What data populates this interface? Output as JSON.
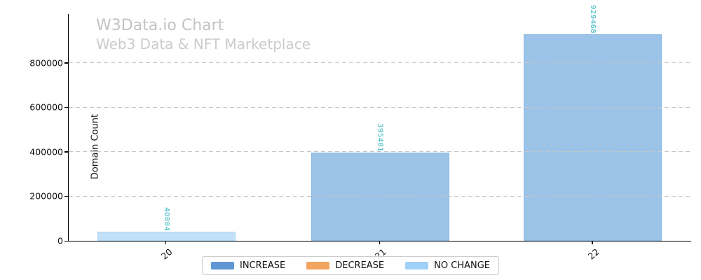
{
  "header": {
    "title": "W3Data.io Chart",
    "subtitle": "Web3 Data & NFT Marketplace"
  },
  "chart_data": {
    "type": "bar",
    "title": "W3Data.io Chart",
    "subtitle": "Web3 Data & NFT Marketplace",
    "xlabel": "",
    "ylabel": "Domain Count",
    "categories": [
      "20",
      "21",
      "22"
    ],
    "bars": [
      {
        "category": "20",
        "value": 40884,
        "label": "40884",
        "status": "NO CHANGE"
      },
      {
        "category": "21",
        "value": 395481,
        "label": "395481",
        "status": "INCREASE"
      },
      {
        "category": "22",
        "value": 929468,
        "label": "929468",
        "status": "INCREASE"
      }
    ],
    "yticks": [
      0,
      200000,
      400000,
      600000,
      800000
    ],
    "ytick_labels": [
      "0",
      "200000",
      "400000",
      "600000",
      "800000"
    ],
    "ylim": [
      0,
      1020000
    ],
    "grid": {
      "axis": "y",
      "style": "dashed",
      "color": "#c6c6c6",
      "drawn_over_bars": true
    },
    "value_label_color": "#2eb5c0",
    "value_label_rotation": "vertical",
    "bar_fills": {
      "INCREASE": "#9cc3e8",
      "DECREASE": "#f5c49a",
      "NO CHANGE": "#c2e0f7"
    },
    "legend": {
      "position": "bottom-center",
      "entries": [
        {
          "label": "INCREASE",
          "color": "#5e97d4"
        },
        {
          "label": "DECREASE",
          "color": "#f2a35e"
        },
        {
          "label": "NO CHANGE",
          "color": "#9fd0f7"
        }
      ]
    }
  }
}
